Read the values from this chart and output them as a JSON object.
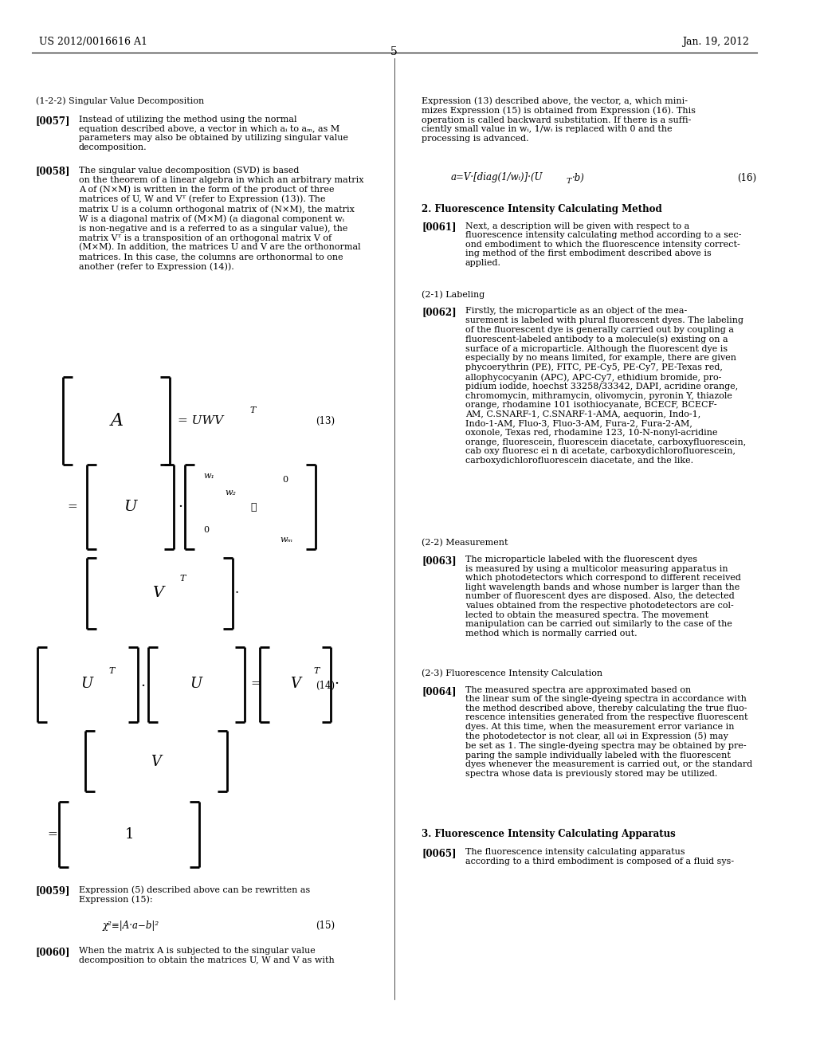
{
  "bg_color": "#ffffff",
  "header_left": "US 2012/0016616 A1",
  "header_right": "Jan. 19, 2012",
  "page_number": "5"
}
